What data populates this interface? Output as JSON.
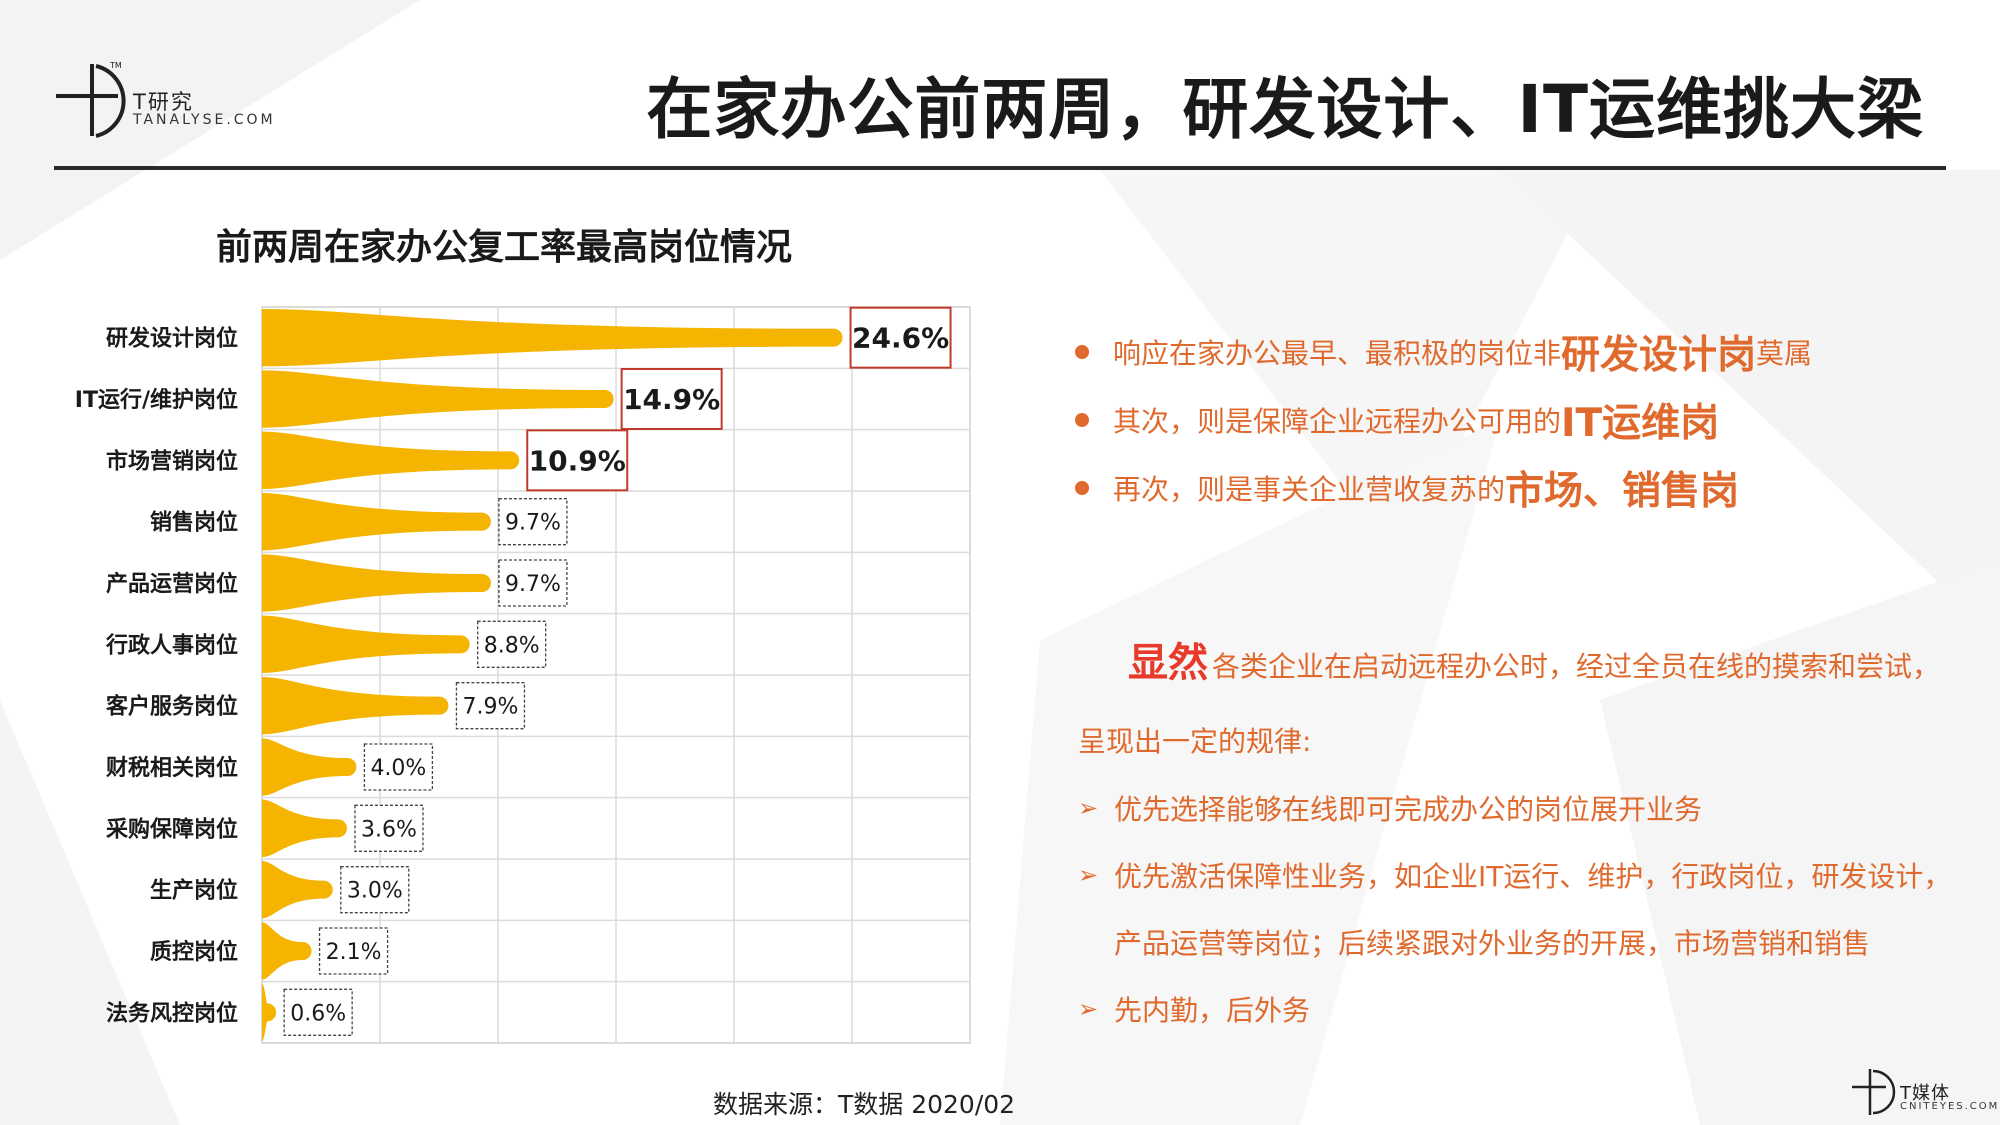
{
  "header": {
    "logo_cn": "T研究",
    "logo_en": "TANALYSE.COM",
    "title": "在家办公前两周，研发设计、IT运维挑大梁"
  },
  "chart_data": {
    "type": "bar",
    "title": "前两周在家办公复工率最高岗位情况",
    "categories": [
      "研发设计岗位",
      "IT运行/维护岗位",
      "市场营销岗位",
      "销售岗位",
      "产品运营岗位",
      "行政人事岗位",
      "客户服务岗位",
      "财税相关岗位",
      "采购保障岗位",
      "生产岗位",
      "质控岗位",
      "法务风控岗位"
    ],
    "values": [
      24.6,
      14.9,
      10.9,
      9.7,
      9.7,
      8.8,
      7.9,
      4.0,
      3.6,
      3.0,
      2.1,
      0.6
    ],
    "labels": [
      "24.6%",
      "14.9%",
      "10.9%",
      "9.7%",
      "9.7%",
      "8.8%",
      "7.9%",
      "4.0%",
      "3.6%",
      "3.0%",
      "2.1%",
      "0.6%"
    ],
    "xlim": [
      0,
      30
    ],
    "grid": true,
    "bar_color": "#f5b400",
    "highlight_label_color": "#c0392b"
  },
  "bullets": [
    {
      "pre": "响应在家办公最早、最积极的岗位非",
      "hl": "研发设计岗",
      "post": "莫属"
    },
    {
      "pre": "其次，则是保障企业远程办公可用的",
      "hl": "IT运维岗",
      "post": ""
    },
    {
      "pre": "再次，则是事关企业营收复苏的",
      "hl": "市场、销售岗",
      "post": ""
    }
  ],
  "summary": {
    "lead": "显然",
    "line1": "各类企业在启动远程办公时，经过全员在线的摸索和尝试，",
    "line2": "呈现出一定的规律:",
    "items": [
      {
        "text": "优先选择能够在线即可完成办公的岗位展开业务"
      },
      {
        "text": "优先激活保障性业务，如企业IT运行、维护，行政岗位，研发设计，",
        "cont": "产品运营等岗位；后续紧跟对外业务的开展，市场营销和销售"
      },
      {
        "text": "先内勤，后外务"
      }
    ]
  },
  "source": "数据来源：T数据 2020/02",
  "footer": {
    "logo_cn": "T媒体",
    "logo_en": "CNITEYES.COM"
  },
  "colors": {
    "accent": "#e06a2e",
    "accent_red": "#e83a2a",
    "bar": "#f5b400"
  }
}
